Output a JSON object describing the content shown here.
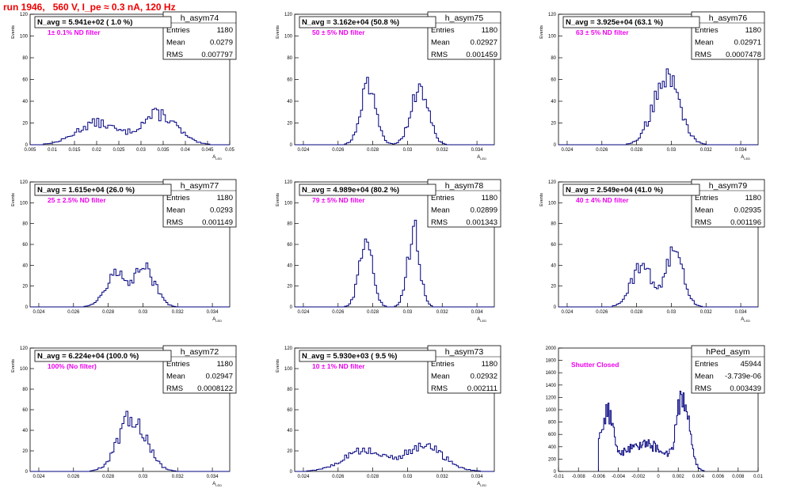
{
  "run_title": "run 1946,   560 V, I_pe ≈ 0.3 nA, 120 Hz",
  "colors": {
    "hist": "#000080",
    "annotation": "#ee00ee",
    "title": "#ee0000",
    "axis": "#000000"
  },
  "chart_data": [
    {
      "type": "bar",
      "name": "h_asym74",
      "avg_label": "N_avg = 5.941e+02 ( 1.0 %)",
      "filter_label": "1± 0.1% ND filter",
      "stats": [
        {
          "label": "Entries",
          "value": "1180"
        },
        {
          "label": "Mean",
          "value": "0.0279"
        },
        {
          "label": "RMS",
          "value": "0.007797"
        }
      ],
      "xlabel": "A",
      "xlabel_sub": "LED",
      "ylabel": "Events",
      "xlim": [
        0.005,
        0.05
      ],
      "ylim": [
        0,
        120
      ],
      "x_ticks": [
        "0.005",
        "0.01",
        "0.015",
        "0.02",
        "0.025",
        "0.03",
        "0.035",
        "0.04",
        "0.045",
        "0.05"
      ],
      "y_ticks": [
        "0",
        "20",
        "40",
        "60",
        "80",
        "100",
        "120"
      ],
      "peaks": [
        {
          "mu": 0.02,
          "sigma": 0.0045,
          "amp": 20
        },
        {
          "mu": 0.034,
          "sigma": 0.004,
          "amp": 28
        }
      ],
      "bins": 90
    },
    {
      "type": "bar",
      "name": "h_asym75",
      "avg_label": "N_avg = 3.162e+04 (50.8 %)",
      "filter_label": "50 ± 5% ND filter",
      "stats": [
        {
          "label": "Entries",
          "value": "1180"
        },
        {
          "label": "Mean",
          "value": "0.02927"
        },
        {
          "label": "RMS",
          "value": "0.001459"
        }
      ],
      "xlabel": "A",
      "xlabel_sub": "LED",
      "ylabel": "Events",
      "xlim": [
        0.0235,
        0.035
      ],
      "ylim": [
        0,
        120
      ],
      "x_ticks": [
        "0.024",
        "0.026",
        "0.028",
        "0.03",
        "0.032",
        "0.034"
      ],
      "y_ticks": [
        "0",
        "20",
        "40",
        "60",
        "80",
        "100",
        "120"
      ],
      "peaks": [
        {
          "mu": 0.02775,
          "sigma": 0.00045,
          "amp": 52
        },
        {
          "mu": 0.0307,
          "sigma": 0.0005,
          "amp": 52
        }
      ],
      "bins": 100
    },
    {
      "type": "bar",
      "name": "h_asym76",
      "avg_label": "N_avg = 3.925e+04 (63.1 %)",
      "filter_label": "63 ± 5% ND filter",
      "stats": [
        {
          "label": "Entries",
          "value": "1180"
        },
        {
          "label": "Mean",
          "value": "0.02971"
        },
        {
          "label": "RMS",
          "value": "0.0007478"
        }
      ],
      "xlabel": "A",
      "xlabel_sub": "LED",
      "ylabel": "Events",
      "xlim": [
        0.0235,
        0.035
      ],
      "ylim": [
        0,
        120
      ],
      "x_ticks": [
        "0.024",
        "0.026",
        "0.028",
        "0.03",
        "0.032",
        "0.034"
      ],
      "y_ticks": [
        "0",
        "20",
        "40",
        "60",
        "80",
        "100",
        "120"
      ],
      "peaks": [
        {
          "mu": 0.0297,
          "sigma": 0.00075,
          "amp": 62
        }
      ],
      "bins": 100
    },
    {
      "type": "bar",
      "name": "h_asym77",
      "avg_label": "N_avg = 1.615e+04 (26.0 %)",
      "filter_label": "25 ± 2.5% ND filter",
      "stats": [
        {
          "label": "Entries",
          "value": "1180"
        },
        {
          "label": "Mean",
          "value": "0.0293"
        },
        {
          "label": "RMS",
          "value": "0.001149"
        }
      ],
      "xlabel": "A",
      "xlabel_sub": "LED",
      "ylabel": "Events",
      "xlim": [
        0.0235,
        0.035
      ],
      "ylim": [
        0,
        120
      ],
      "x_ticks": [
        "0.024",
        "0.026",
        "0.028",
        "0.03",
        "0.032",
        "0.034"
      ],
      "y_ticks": [
        "0",
        "20",
        "40",
        "60",
        "80",
        "100",
        "120"
      ],
      "peaks": [
        {
          "mu": 0.0284,
          "sigma": 0.0006,
          "amp": 30
        },
        {
          "mu": 0.0301,
          "sigma": 0.0006,
          "amp": 36
        }
      ],
      "bins": 100
    },
    {
      "type": "bar",
      "name": "h_asym78",
      "avg_label": "N_avg = 4.989e+04 (80.2 %)",
      "filter_label": "79 ± 5% ND filter",
      "stats": [
        {
          "label": "Entries",
          "value": "1180"
        },
        {
          "label": "Mean",
          "value": "0.02899"
        },
        {
          "label": "RMS",
          "value": "0.001343"
        }
      ],
      "xlabel": "A",
      "xlabel_sub": "LED",
      "ylabel": "Events",
      "xlim": [
        0.0235,
        0.035
      ],
      "ylim": [
        0,
        120
      ],
      "x_ticks": [
        "0.024",
        "0.026",
        "0.028",
        "0.03",
        "0.032",
        "0.034"
      ],
      "y_ticks": [
        "0",
        "20",
        "40",
        "60",
        "80",
        "100",
        "120"
      ],
      "peaks": [
        {
          "mu": 0.0276,
          "sigma": 0.00038,
          "amp": 62
        },
        {
          "mu": 0.03035,
          "sigma": 0.00035,
          "amp": 72
        }
      ],
      "bins": 100
    },
    {
      "type": "bar",
      "name": "h_asym79",
      "avg_label": "N_avg = 2.549e+04 (41.0 %)",
      "filter_label": "40 ± 4% ND filter",
      "stats": [
        {
          "label": "Entries",
          "value": "1180"
        },
        {
          "label": "Mean",
          "value": "0.02935"
        },
        {
          "label": "RMS",
          "value": "0.001196"
        }
      ],
      "xlabel": "A",
      "xlabel_sub": "LED",
      "ylabel": "Events",
      "xlim": [
        0.0235,
        0.035
      ],
      "ylim": [
        0,
        120
      ],
      "x_ticks": [
        "0.024",
        "0.026",
        "0.028",
        "0.03",
        "0.032",
        "0.034"
      ],
      "y_ticks": [
        "0",
        "20",
        "40",
        "60",
        "80",
        "100",
        "120"
      ],
      "peaks": [
        {
          "mu": 0.0283,
          "sigma": 0.0006,
          "amp": 40
        },
        {
          "mu": 0.0302,
          "sigma": 0.0005,
          "amp": 52
        }
      ],
      "bins": 100
    },
    {
      "type": "bar",
      "name": "h_asym72",
      "avg_label": "N_avg = 6.224e+04 (100.0 %)",
      "filter_label": "100% (No filter)",
      "stats": [
        {
          "label": "Entries",
          "value": "1180"
        },
        {
          "label": "Mean",
          "value": "0.02947"
        },
        {
          "label": "RMS",
          "value": "0.0008122"
        }
      ],
      "xlabel": "A",
      "xlabel_sub": "LED",
      "ylabel": "Events",
      "xlim": [
        0.0235,
        0.035
      ],
      "ylim": [
        0,
        120
      ],
      "x_ticks": [
        "0.024",
        "0.026",
        "0.028",
        "0.03",
        "0.032",
        "0.034"
      ],
      "y_ticks": [
        "0",
        "20",
        "40",
        "60",
        "80",
        "100",
        "120"
      ],
      "peaks": [
        {
          "mu": 0.0294,
          "sigma": 0.0008,
          "amp": 52
        }
      ],
      "bins": 100
    },
    {
      "type": "bar",
      "name": "h_asym73",
      "avg_label": "N_avg = 5.930e+03 ( 9.5 %)",
      "filter_label": "10 ± 1% ND filter",
      "stats": [
        {
          "label": "Entries",
          "value": "1180"
        },
        {
          "label": "Mean",
          "value": "0.02932"
        },
        {
          "label": "RMS",
          "value": "0.002111"
        }
      ],
      "xlabel": "A",
      "xlabel_sub": "LED",
      "ylabel": "Events",
      "xlim": [
        0.0235,
        0.035
      ],
      "ylim": [
        0,
        120
      ],
      "x_ticks": [
        "0.024",
        "0.026",
        "0.028",
        "0.03",
        "0.032",
        "0.034"
      ],
      "y_ticks": [
        "0",
        "20",
        "40",
        "60",
        "80",
        "100",
        "120"
      ],
      "peaks": [
        {
          "mu": 0.0275,
          "sigma": 0.0012,
          "amp": 20
        },
        {
          "mu": 0.031,
          "sigma": 0.0011,
          "amp": 24
        }
      ],
      "bins": 100
    },
    {
      "type": "bar",
      "name": "hPed_asym",
      "avg_label": "",
      "filter_label": "Shutter Closed",
      "stats": [
        {
          "label": "Entries",
          "value": "45944"
        },
        {
          "label": "Mean",
          "value": "-3.739e-06"
        },
        {
          "label": "RMS",
          "value": "0.003439"
        }
      ],
      "xlabel": "",
      "xlabel_sub": "",
      "ylabel": "",
      "xlim": [
        -0.01,
        0.01
      ],
      "ylim": [
        0,
        2000
      ],
      "x_ticks": [
        "-0.01",
        "-0.008",
        "-0.006",
        "-0.004",
        "-0.002",
        "0",
        "0.002",
        "0.004",
        "0.006",
        "0.008",
        "0.01"
      ],
      "y_ticks": [
        "0",
        "200",
        "400",
        "600",
        "800",
        "1000",
        "1200",
        "1400",
        "1600",
        "1800",
        "2000"
      ],
      "peaks": [
        {
          "mu": -0.0052,
          "sigma": 0.0006,
          "amp": 900
        },
        {
          "mu": 0.0025,
          "sigma": 0.0006,
          "amp": 1200
        },
        {
          "mu": -0.0015,
          "sigma": 0.0022,
          "amp": 450
        }
      ],
      "range": [
        -0.006,
        0.0046
      ],
      "bins": 100
    }
  ]
}
